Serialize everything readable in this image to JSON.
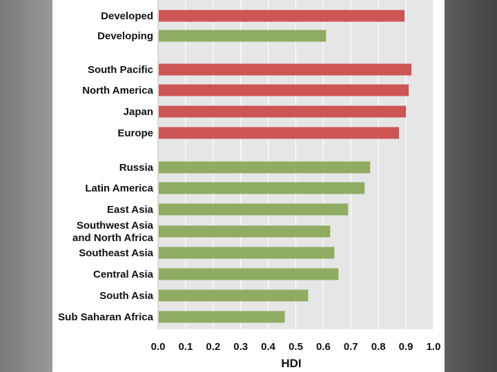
{
  "chart_data": {
    "type": "bar",
    "orientation": "horizontal",
    "title": "",
    "xlabel": "HDI",
    "ylabel": "",
    "xlim": [
      0.0,
      1.0
    ],
    "ticks": [
      "0.0",
      "0.1",
      "0.2",
      "0.3",
      "0.4",
      "0.5",
      "0.6",
      "0.7",
      "0.8",
      "0.9",
      "1.0"
    ],
    "groups": [
      {
        "name": "summary",
        "items": [
          {
            "label": "Developed",
            "value": 0.895,
            "color": "#cd5555"
          },
          {
            "label": "Developing",
            "value": 0.61,
            "color": "#8fac62"
          }
        ]
      },
      {
        "name": "developed-regions",
        "items": [
          {
            "label": "South Pacific",
            "value": 0.92,
            "color": "#cd5555"
          },
          {
            "label": "North America",
            "value": 0.91,
            "color": "#cd5555"
          },
          {
            "label": "Japan",
            "value": 0.9,
            "color": "#cd5555"
          },
          {
            "label": "Europe",
            "value": 0.875,
            "color": "#cd5555"
          }
        ]
      },
      {
        "name": "developing-regions",
        "items": [
          {
            "label": "Russia",
            "value": 0.77,
            "color": "#8fac62"
          },
          {
            "label": "Latin America",
            "value": 0.75,
            "color": "#8fac62"
          },
          {
            "label": "East Asia",
            "value": 0.69,
            "color": "#8fac62"
          },
          {
            "label": "Southwest Asia\nand North Africa",
            "value": 0.625,
            "color": "#8fac62"
          },
          {
            "label": "Southeast Asia",
            "value": 0.64,
            "color": "#8fac62"
          },
          {
            "label": "Central Asia",
            "value": 0.655,
            "color": "#8fac62"
          },
          {
            "label": "South Asia",
            "value": 0.545,
            "color": "#8fac62"
          },
          {
            "label": "Sub Saharan Africa",
            "value": 0.46,
            "color": "#8fac62"
          }
        ]
      }
    ],
    "plot_background": "#e6e6e6",
    "grid": true
  }
}
